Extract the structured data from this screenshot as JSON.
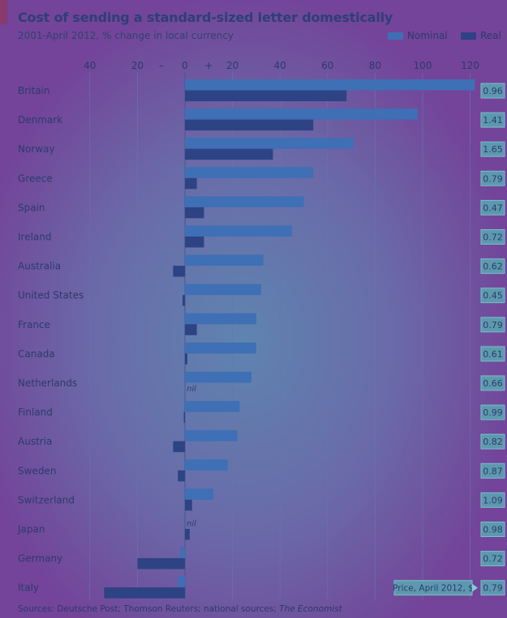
{
  "header": {
    "title": "Cost of sending a standard-sized letter domestically",
    "subtitle": "2001-April 2012, % change in local currency"
  },
  "legend": {
    "nominal_label": "Nominal",
    "real_label": "Real"
  },
  "source": {
    "text": "Sources: Deutsche Post; Thomson Reuters; national sources;",
    "italic": "The Economist"
  },
  "colors": {
    "nominal": "#3f6fb4",
    "real": "#2d4383",
    "price_box_fill": "#5aa8b2",
    "price_box_border": "#7fd0d4"
  },
  "chart_data": {
    "type": "bar",
    "orientation": "horizontal",
    "title": "Cost of sending a standard-sized letter domestically",
    "subtitle": "2001-April 2012, % change in local currency",
    "xlim": [
      -40,
      120
    ],
    "x_ticks": [
      -40,
      -20,
      0,
      20,
      40,
      60,
      80,
      100,
      120
    ],
    "x_tick_labels": [
      "40",
      "20",
      "0",
      "20",
      "40",
      "60",
      "80",
      "100",
      "120"
    ],
    "sign_minus": "–",
    "sign_plus": "+",
    "grid": true,
    "legend_position": "top-right",
    "categories": [
      "Britain",
      "Denmark",
      "Norway",
      "Greece",
      "Spain",
      "Ireland",
      "Australia",
      "United States",
      "France",
      "Canada",
      "Netherlands",
      "Finland",
      "Austria",
      "Sweden",
      "Switzerland",
      "Japan",
      "Germany",
      "Italy"
    ],
    "series": [
      {
        "name": "Nominal",
        "values": [
          122,
          98,
          71,
          54,
          50,
          45,
          33,
          32,
          30,
          30,
          28,
          23,
          22,
          18,
          12,
          0,
          -2,
          -3
        ]
      },
      {
        "name": "Real",
        "values": [
          68,
          54,
          37,
          5,
          8,
          8,
          -5,
          -1,
          5,
          1,
          0,
          -0.5,
          -5,
          -3,
          3,
          2,
          -20,
          -34
        ]
      }
    ],
    "annotations": [
      {
        "category": "Netherlands",
        "text": "nil"
      },
      {
        "category": "Japan",
        "text": "nil"
      }
    ],
    "price_label": "Price, April 2012, $",
    "prices": [
      "0.96",
      "1.41",
      "1.65",
      "0.79",
      "0.47",
      "0.72",
      "0.62",
      "0.45",
      "0.79",
      "0.61",
      "0.66",
      "0.99",
      "0.82",
      "0.87",
      "1.09",
      "0.98",
      "0.72",
      "0.79"
    ]
  }
}
